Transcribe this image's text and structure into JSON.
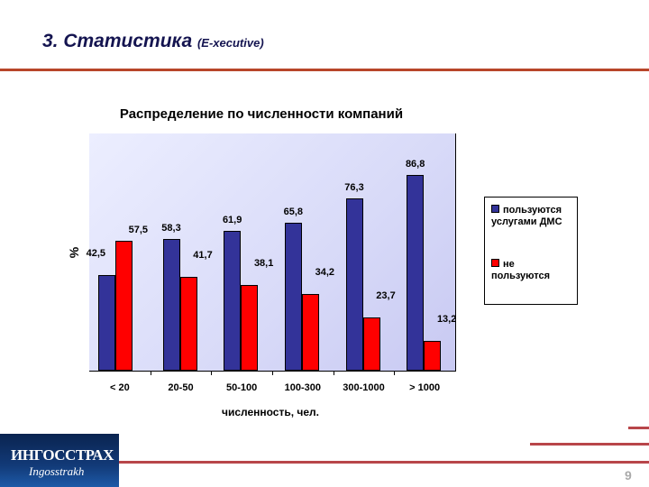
{
  "header": {
    "title": "3. Статистика",
    "subtitle": "(E-xecutive)"
  },
  "footer": {
    "logo_main": "ИНГОССТРАХ",
    "logo_script": "Ingosstrakh",
    "page_number": "9"
  },
  "colors": {
    "series_used": "#333399",
    "series_not_used": "#ff0000",
    "rule": "#b8462a"
  },
  "chart_data": {
    "type": "bar",
    "title": "Распределение по численности компаний",
    "xlabel": "численность, чел.",
    "ylabel": "%",
    "categories": [
      "< 20",
      "20-50",
      "50-100",
      "100-300",
      "300-1000",
      "> 1000"
    ],
    "series": [
      {
        "name": "пользуются услугами ДМС",
        "values": [
          42.5,
          58.3,
          61.9,
          65.8,
          76.3,
          86.8
        ],
        "labels": [
          "42,5",
          "58,3",
          "61,9",
          "65,8",
          "76,3",
          "86,8"
        ]
      },
      {
        "name": "не пользуются",
        "values": [
          57.5,
          41.7,
          38.1,
          34.2,
          23.7,
          13.2
        ],
        "labels": [
          "57,5",
          "41,7",
          "38,1",
          "34,2",
          "23,7",
          "13,2"
        ]
      }
    ],
    "ylim": [
      0,
      100
    ],
    "grid": false,
    "legend_position": "right"
  }
}
